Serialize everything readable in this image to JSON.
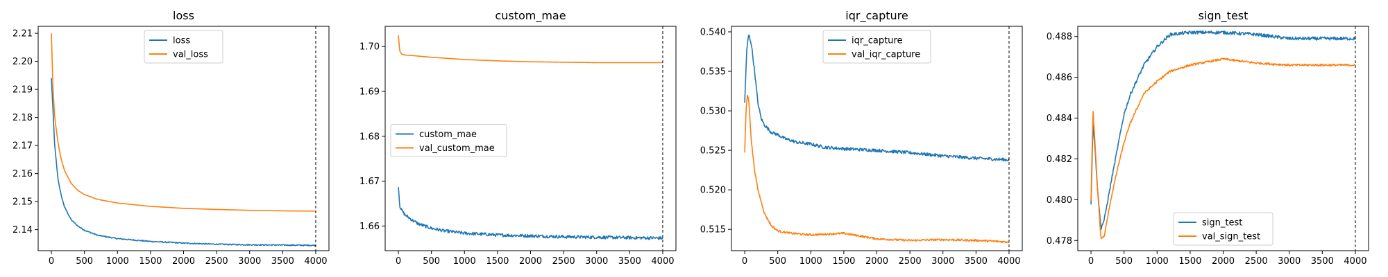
{
  "chart_data": [
    {
      "type": "line",
      "title": "loss",
      "xlabel": "",
      "ylabel": "",
      "xlim": [
        -200,
        4200
      ],
      "ylim": [
        2.1325,
        2.2125
      ],
      "xticks": [
        0,
        500,
        1000,
        1500,
        2000,
        2500,
        3000,
        3500,
        4000
      ],
      "yticks": [
        2.14,
        2.15,
        2.16,
        2.17,
        2.18,
        2.19,
        2.2,
        2.21
      ],
      "ytick_labels": [
        "2.14",
        "2.15",
        "2.16",
        "2.17",
        "2.18",
        "2.19",
        "2.20",
        "2.21"
      ],
      "vline": 4000,
      "legend": "top-center",
      "grid": false,
      "series": [
        {
          "name": "loss",
          "color": "#1f77b4",
          "noise": 0.0002,
          "x": [
            0,
            50,
            100,
            150,
            200,
            300,
            400,
            500,
            700,
            1000,
            1500,
            2000,
            2500,
            3000,
            3500,
            4000
          ],
          "y": [
            2.194,
            2.17,
            2.158,
            2.152,
            2.148,
            2.1435,
            2.1413,
            2.1398,
            2.138,
            2.1368,
            2.1358,
            2.1352,
            2.1348,
            2.1346,
            2.1345,
            2.1344
          ]
        },
        {
          "name": "val_loss",
          "color": "#ff7f0e",
          "noise": 0,
          "x": [
            0,
            25,
            50,
            100,
            150,
            200,
            300,
            400,
            500,
            700,
            1000,
            1500,
            2000,
            2500,
            3000,
            3500,
            4000
          ],
          "y": [
            2.21,
            2.19,
            2.18,
            2.171,
            2.165,
            2.161,
            2.1565,
            2.154,
            2.1525,
            2.1508,
            2.1495,
            2.1483,
            2.1476,
            2.1472,
            2.1469,
            2.1467,
            2.1466
          ]
        }
      ]
    },
    {
      "type": "line",
      "title": "custom_mae",
      "xlabel": "",
      "ylabel": "",
      "xlim": [
        -200,
        4200
      ],
      "ylim": [
        1.6545,
        1.7045
      ],
      "xticks": [
        0,
        500,
        1000,
        1500,
        2000,
        2500,
        3000,
        3500,
        4000
      ],
      "yticks": [
        1.66,
        1.67,
        1.68,
        1.69,
        1.7
      ],
      "ytick_labels": [
        "1.66",
        "1.67",
        "1.68",
        "1.69",
        "1.70"
      ],
      "vline": 4000,
      "legend": "center-left",
      "grid": false,
      "series": [
        {
          "name": "custom_mae",
          "color": "#1f77b4",
          "noise": 0.00035,
          "x": [
            0,
            20,
            50,
            100,
            200,
            300,
            500,
            700,
            1000,
            1500,
            2000,
            2500,
            3000,
            3500,
            4000
          ],
          "y": [
            1.669,
            1.6645,
            1.6635,
            1.6625,
            1.6614,
            1.6605,
            1.6595,
            1.6589,
            1.6584,
            1.658,
            1.6578,
            1.6576,
            1.6575,
            1.6574,
            1.6573
          ]
        },
        {
          "name": "val_custom_mae",
          "color": "#ff7f0e",
          "noise": 0,
          "x": [
            0,
            20,
            50,
            100,
            200,
            500,
            1000,
            1500,
            2000,
            2500,
            3000,
            3500,
            4000
          ],
          "y": [
            1.7025,
            1.699,
            1.6983,
            1.6981,
            1.698,
            1.6976,
            1.6971,
            1.6968,
            1.6966,
            1.6965,
            1.6964,
            1.6964,
            1.6964
          ]
        }
      ]
    },
    {
      "type": "line",
      "title": "iqr_capture",
      "xlabel": "",
      "ylabel": "",
      "xlim": [
        -200,
        4200
      ],
      "ylim": [
        0.5123,
        0.5407
      ],
      "xticks": [
        0,
        500,
        1000,
        1500,
        2000,
        2500,
        3000,
        3500,
        4000
      ],
      "yticks": [
        0.515,
        0.52,
        0.525,
        0.53,
        0.535,
        0.54
      ],
      "ytick_labels": [
        "0.515",
        "0.520",
        "0.525",
        "0.530",
        "0.535",
        "0.540"
      ],
      "vline": 4000,
      "legend": "top-center",
      "grid": false,
      "series": [
        {
          "name": "iqr_capture",
          "color": "#1f77b4",
          "noise": 0.0002,
          "x": [
            0,
            30,
            60,
            100,
            150,
            200,
            250,
            300,
            400,
            500,
            600,
            800,
            1000,
            1200,
            1500,
            2000,
            2500,
            3000,
            3500,
            4000
          ],
          "y": [
            0.531,
            0.5375,
            0.5397,
            0.5385,
            0.535,
            0.531,
            0.529,
            0.5282,
            0.5273,
            0.527,
            0.5265,
            0.526,
            0.5258,
            0.5254,
            0.5252,
            0.525,
            0.5247,
            0.5243,
            0.524,
            0.5238
          ]
        },
        {
          "name": "val_iqr_capture",
          "color": "#ff7f0e",
          "noise": 0.00012,
          "x": [
            0,
            20,
            40,
            60,
            80,
            100,
            150,
            200,
            300,
            400,
            500,
            700,
            1000,
            1500,
            2000,
            2500,
            3000,
            3500,
            4000
          ],
          "y": [
            0.5247,
            0.53,
            0.532,
            0.5315,
            0.529,
            0.5262,
            0.5225,
            0.52,
            0.517,
            0.5155,
            0.5148,
            0.5145,
            0.5143,
            0.5145,
            0.5138,
            0.5136,
            0.5137,
            0.5136,
            0.5134
          ]
        }
      ]
    },
    {
      "type": "line",
      "title": "sign_test",
      "xlabel": "",
      "ylabel": "",
      "xlim": [
        -200,
        4200
      ],
      "ylim": [
        0.4775,
        0.4885
      ],
      "xticks": [
        0,
        500,
        1000,
        1500,
        2000,
        2500,
        3000,
        3500,
        4000
      ],
      "yticks": [
        0.478,
        0.48,
        0.482,
        0.484,
        0.486,
        0.488
      ],
      "ytick_labels": [
        "0.478",
        "0.480",
        "0.482",
        "0.484",
        "0.486",
        "0.488"
      ],
      "vline": 4000,
      "legend": "lower-center",
      "grid": false,
      "series": [
        {
          "name": "sign_test",
          "color": "#1f77b4",
          "noise": 8e-05,
          "x": [
            0,
            30,
            60,
            100,
            150,
            200,
            300,
            400,
            500,
            600,
            800,
            1000,
            1200,
            1500,
            2000,
            2500,
            3000,
            3500,
            4000
          ],
          "y": [
            0.4797,
            0.4838,
            0.4825,
            0.4805,
            0.4786,
            0.479,
            0.4808,
            0.4825,
            0.4842,
            0.4852,
            0.4866,
            0.4875,
            0.4881,
            0.4882,
            0.4882,
            0.4881,
            0.4879,
            0.4879,
            0.4879
          ]
        },
        {
          "name": "val_sign_test",
          "color": "#ff7f0e",
          "noise": 5e-05,
          "x": [
            0,
            30,
            60,
            100,
            150,
            200,
            300,
            400,
            500,
            600,
            800,
            1000,
            1200,
            1500,
            2000,
            2500,
            3000,
            3500,
            4000
          ],
          "y": [
            0.48,
            0.4844,
            0.4828,
            0.4805,
            0.4781,
            0.4782,
            0.48,
            0.4815,
            0.4828,
            0.4838,
            0.4852,
            0.4858,
            0.4863,
            0.4866,
            0.4869,
            0.4867,
            0.4866,
            0.4866,
            0.4866
          ]
        }
      ]
    }
  ]
}
